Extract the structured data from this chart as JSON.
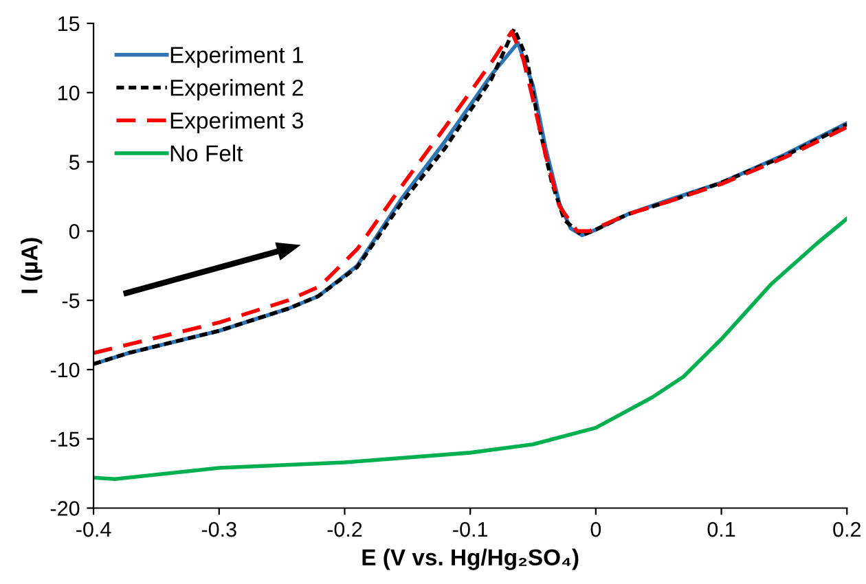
{
  "chart_data": {
    "type": "line",
    "xlabel": "E (V vs. Hg/Hg₂SO₄)",
    "ylabel": "I (µA)",
    "xlim": [
      -0.4,
      0.2
    ],
    "xticks": [
      -0.4,
      -0.3,
      -0.2,
      -0.1,
      0,
      0.1,
      0.2
    ],
    "ylim": [
      -20,
      15
    ],
    "yticks": [
      -20,
      -15,
      -10,
      -5,
      0,
      5,
      10,
      15
    ],
    "grid": false,
    "legend": "top left",
    "marker": "none",
    "series": [
      {
        "name": "Experiment 1",
        "color": "#2e75b6",
        "line_style": "solid",
        "x": [
          -0.4,
          -0.372,
          -0.3,
          -0.245,
          -0.221,
          -0.19,
          -0.155,
          -0.12,
          -0.083,
          -0.062,
          -0.05,
          -0.04,
          -0.029,
          -0.02,
          -0.011,
          0.0,
          0.025,
          0.06,
          0.1,
          0.15,
          0.2
        ],
        "values": [
          -9.6,
          -8.8,
          -7.2,
          -5.6,
          -4.7,
          -2.5,
          2.3,
          6.5,
          11.3,
          13.6,
          10.5,
          6.0,
          2.0,
          0.2,
          -0.3,
          0.1,
          1.2,
          2.3,
          3.5,
          5.5,
          7.8
        ]
      },
      {
        "name": "Experiment 2",
        "color": "#000000",
        "line_style": "dotted",
        "x": [
          -0.4,
          -0.372,
          -0.3,
          -0.245,
          -0.221,
          -0.19,
          -0.155,
          -0.12,
          -0.083,
          -0.065,
          -0.055,
          -0.045,
          -0.035,
          -0.025,
          -0.011,
          0.0,
          0.025,
          0.06,
          0.1,
          0.15,
          0.2
        ],
        "values": [
          -9.6,
          -8.8,
          -7.2,
          -5.6,
          -4.7,
          -2.6,
          2.0,
          6.0,
          11.0,
          14.6,
          12.5,
          7.5,
          3.5,
          0.8,
          -0.3,
          0.1,
          1.2,
          2.2,
          3.5,
          5.4,
          7.7
        ]
      },
      {
        "name": "Experiment 3",
        "color": "#ff0000",
        "line_style": "dashed",
        "x": [
          -0.4,
          -0.3,
          -0.245,
          -0.22,
          -0.19,
          -0.155,
          -0.12,
          -0.083,
          -0.067,
          -0.058,
          -0.05,
          -0.04,
          -0.029,
          -0.015,
          -0.005,
          0.025,
          0.06,
          0.1,
          0.15,
          0.2
        ],
        "values": [
          -8.8,
          -6.6,
          -5.0,
          -4.0,
          -1.3,
          3.2,
          7.5,
          12.2,
          14.4,
          12.5,
          9.5,
          5.5,
          1.8,
          0.0,
          0.0,
          1.2,
          2.2,
          3.4,
          5.3,
          7.5
        ]
      },
      {
        "name": "No Felt",
        "color": "#00b050",
        "line_style": "solid",
        "x": [
          -0.4,
          -0.383,
          -0.3,
          -0.2,
          -0.1,
          -0.05,
          0.0,
          0.045,
          0.07,
          0.1,
          0.14,
          0.176,
          0.2
        ],
        "values": [
          -17.8,
          -17.9,
          -17.1,
          -16.7,
          -16.0,
          -15.4,
          -14.2,
          -12.0,
          -10.5,
          -7.8,
          -3.8,
          -0.9,
          0.9
        ]
      }
    ]
  }
}
